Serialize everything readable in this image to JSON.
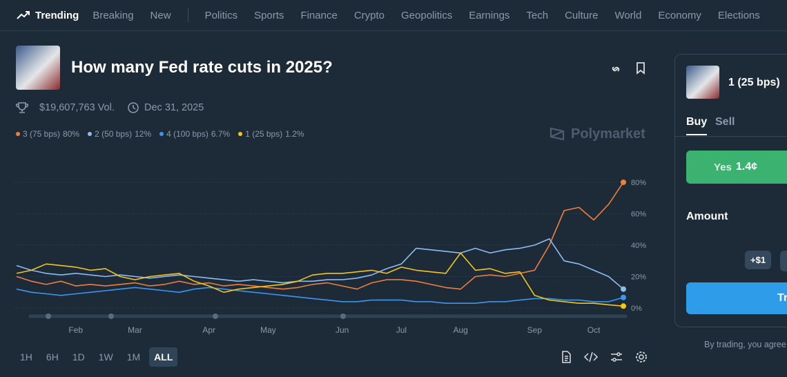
{
  "nav": {
    "trending": "Trending",
    "items": [
      "Breaking",
      "New",
      "Politics",
      "Sports",
      "Finance",
      "Crypto",
      "Geopolitics",
      "Earnings",
      "Tech",
      "Culture",
      "World",
      "Economy",
      "Elections"
    ]
  },
  "market": {
    "title": "How many Fed rate cuts in 2025?",
    "volume": "$19,607,763 Vol.",
    "end_date": "Dec 31, 2025",
    "watermark": "Polymarket"
  },
  "chart_data": {
    "type": "line",
    "categories": [
      null,
      null,
      null,
      null,
      "Feb",
      null,
      null,
      null,
      "Mar",
      null,
      null,
      null,
      null,
      "Apr",
      null,
      null,
      null,
      "May",
      null,
      null,
      null,
      null,
      "Jun",
      null,
      null,
      null,
      "Jul",
      null,
      null,
      null,
      "Aug",
      null,
      null,
      null,
      null,
      "Sep",
      null,
      null,
      null,
      "Oct",
      null,
      null
    ],
    "series": [
      {
        "name": "3 (75 bps)",
        "legend_label": "80%",
        "color": "#f07f3c",
        "values": [
          20,
          17,
          15,
          17,
          14,
          15,
          14,
          15,
          16,
          14,
          15,
          17,
          15,
          16,
          14,
          15,
          14,
          13,
          12,
          13,
          15,
          16,
          14,
          12,
          16,
          18,
          18,
          17,
          15,
          13,
          12,
          20,
          21,
          20,
          22,
          24,
          40,
          62,
          64,
          56,
          66,
          80
        ]
      },
      {
        "name": "2 (50 bps)",
        "legend_label": "12%",
        "color": "#8ebdf2",
        "values": [
          27,
          24,
          22,
          21,
          22,
          21,
          20,
          21,
          20,
          19,
          20,
          21,
          20,
          19,
          18,
          17,
          18,
          17,
          16,
          17,
          17,
          18,
          18,
          19,
          21,
          25,
          28,
          38,
          37,
          36,
          35,
          38,
          35,
          37,
          38,
          40,
          44,
          30,
          28,
          24,
          20,
          12
        ]
      },
      {
        "name": "4 (100 bps)",
        "legend_label": "6.7%",
        "color": "#3b97f0",
        "values": [
          12,
          10,
          9,
          8,
          9,
          10,
          11,
          12,
          13,
          12,
          11,
          10,
          12,
          13,
          12,
          11,
          10,
          9,
          8,
          7,
          6,
          5,
          4,
          4,
          5,
          5,
          5,
          4,
          4,
          3,
          3,
          3,
          4,
          4,
          5,
          6,
          6,
          5,
          5,
          4,
          4,
          6.7
        ]
      },
      {
        "name": "1 (25 bps)",
        "legend_label": "1.2%",
        "color": "#f5c518",
        "values": [
          22,
          24,
          28,
          27,
          26,
          24,
          25,
          20,
          18,
          20,
          21,
          22,
          17,
          14,
          10,
          12,
          13,
          14,
          15,
          17,
          21,
          22,
          22,
          23,
          24,
          22,
          26,
          24,
          23,
          22,
          35,
          24,
          25,
          22,
          23,
          8,
          5,
          4,
          3,
          3,
          2,
          1.2
        ]
      }
    ],
    "ylim": [
      -3,
      85
    ],
    "yticks": [
      {
        "value": 0,
        "label": "0%"
      },
      {
        "value": 20,
        "label": "20%"
      },
      {
        "value": 40,
        "label": "40%"
      },
      {
        "value": 60,
        "label": "60%"
      },
      {
        "value": 80,
        "label": "80%"
      }
    ],
    "grid": true
  },
  "range_buttons": [
    "1H",
    "6H",
    "1D",
    "1W",
    "1M",
    "ALL"
  ],
  "range_selected": 5,
  "trade_panel": {
    "outcome": "1 (25 bps)",
    "buy": "Buy",
    "sell": "Sell",
    "yes": "Yes",
    "price": "1.4¢",
    "amount": "Amount",
    "quick_add": "+$1",
    "trade_button": "Trade",
    "terms": "By trading, you agree"
  }
}
